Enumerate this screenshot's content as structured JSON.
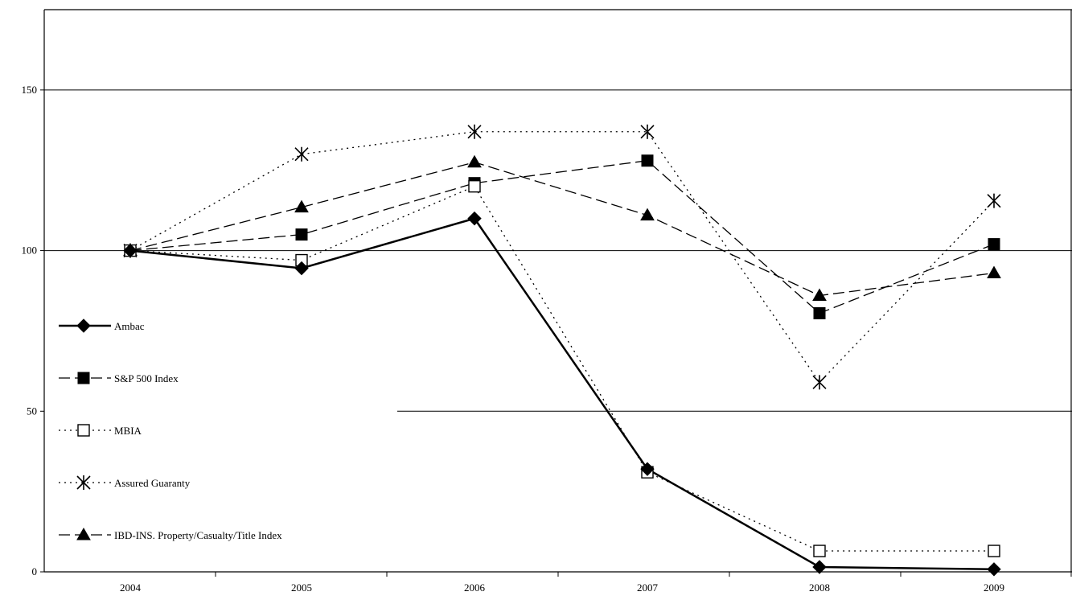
{
  "chart_data": {
    "type": "line",
    "title": "",
    "xlabel": "",
    "ylabel": "",
    "categories": [
      "2004",
      "2005",
      "2006",
      "2007",
      "2008",
      "2009"
    ],
    "ylim": [
      0,
      175
    ],
    "yticks": [
      "0",
      "50",
      "100",
      "150"
    ],
    "grid": "horizontal",
    "legend_position": "left",
    "series": [
      {
        "name": "Ambac",
        "values": [
          100,
          94.5,
          110,
          32,
          1.5,
          0.8
        ],
        "line": "solid",
        "marker": "diamond-filled",
        "color": "#000000"
      },
      {
        "name": "S&P 500 Index",
        "values": [
          100,
          105,
          121,
          128,
          80.5,
          102
        ],
        "line": "long-dash",
        "marker": "square-filled",
        "color": "#000000"
      },
      {
        "name": "MBIA",
        "values": [
          100,
          97,
          120,
          31,
          6.5,
          6.5
        ],
        "line": "dotted",
        "marker": "square-open",
        "color": "#000000"
      },
      {
        "name": "Assured Guaranty",
        "values": [
          100,
          130,
          137,
          137,
          59,
          115.5
        ],
        "line": "dotted",
        "marker": "asterisk",
        "color": "#000000"
      },
      {
        "name": "IBD-INS. Property/Casualty/Title Index",
        "values": [
          100,
          113.5,
          127.5,
          111,
          86,
          93
        ],
        "line": "long-dash",
        "marker": "triangle-filled",
        "color": "#000000"
      }
    ]
  }
}
